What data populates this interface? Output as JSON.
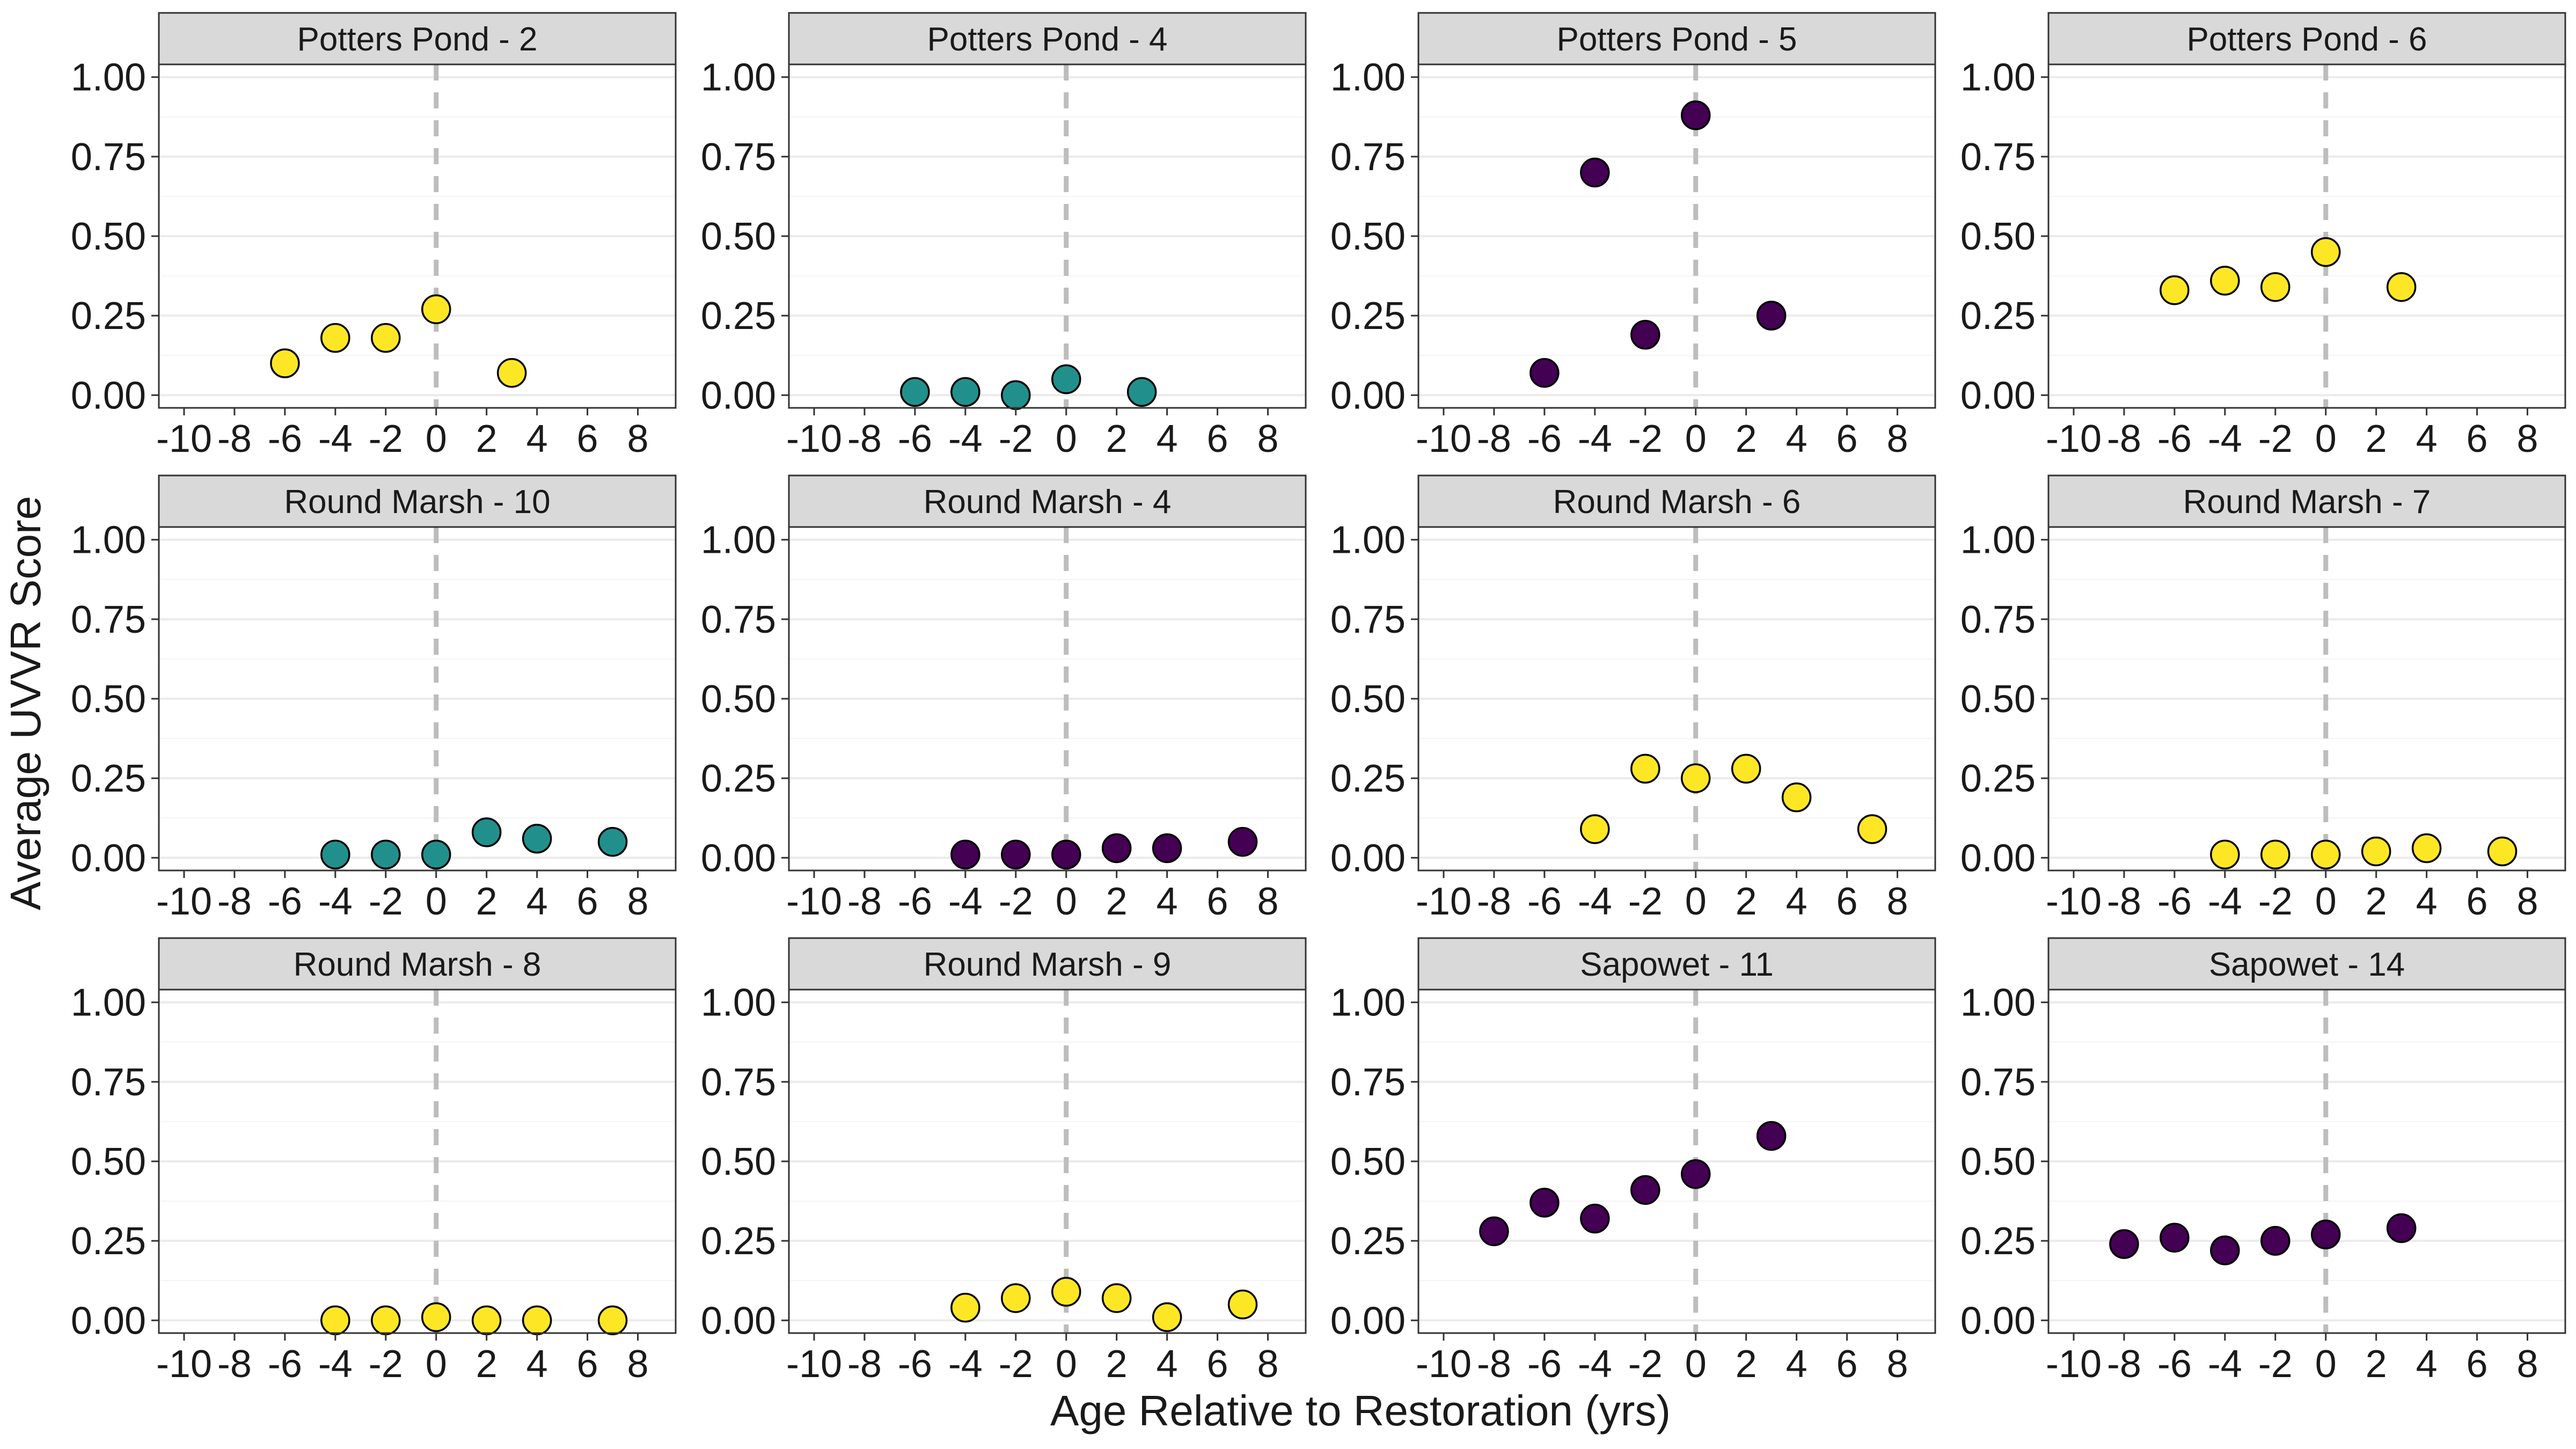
{
  "chart_data": {
    "type": "scatter",
    "layout": "facet-grid",
    "x_axis_label": "Age Relative to Restoration (yrs)",
    "y_axis_label": "Average UVVR Score",
    "xlim": [
      -11,
      9.5
    ],
    "ylim": [
      -0.04,
      1.04
    ],
    "x_ticks": [
      -10,
      -8,
      -6,
      -4,
      -2,
      0,
      2,
      4,
      6,
      8
    ],
    "x_tick_labels": [
      "-10",
      "-8",
      "-6",
      "-4",
      "-2",
      "0",
      "2",
      "4",
      "6",
      "8"
    ],
    "y_ticks": [
      0,
      0.25,
      0.5,
      0.75,
      1.0
    ],
    "y_tick_labels": [
      "0.00",
      "0.25",
      "0.50",
      "0.75",
      "1.00"
    ],
    "reference_line": {
      "x": 0,
      "style": "dashed",
      "color": "#bdbdbd"
    },
    "grid": true,
    "colors": {
      "yellow": "#fde725",
      "teal": "#21908c",
      "purple": "#440154",
      "strip_bg": "#d9d9d9",
      "grid": "#ebebeb"
    },
    "panels": [
      {
        "title": "Potters Pond - 2",
        "color": "#fde725",
        "x": [
          -6,
          -4,
          -2,
          0,
          3
        ],
        "y": [
          0.1,
          0.18,
          0.18,
          0.27,
          0.07
        ]
      },
      {
        "title": "Potters Pond - 4",
        "color": "#21908c",
        "x": [
          -6,
          -4,
          -2,
          0,
          3
        ],
        "y": [
          0.01,
          0.01,
          0.0,
          0.05,
          0.01
        ]
      },
      {
        "title": "Potters Pond - 5",
        "color": "#440154",
        "x": [
          -6,
          -4,
          -2,
          0,
          3
        ],
        "y": [
          0.07,
          0.7,
          0.19,
          0.88,
          0.25
        ]
      },
      {
        "title": "Potters Pond - 6",
        "color": "#fde725",
        "x": [
          -6,
          -4,
          -2,
          0,
          3
        ],
        "y": [
          0.33,
          0.36,
          0.34,
          0.45,
          0.34
        ]
      },
      {
        "title": "Round Marsh - 10",
        "color": "#21908c",
        "x": [
          -4,
          -2,
          0,
          2,
          4,
          7
        ],
        "y": [
          0.01,
          0.01,
          0.01,
          0.08,
          0.06,
          0.05
        ]
      },
      {
        "title": "Round Marsh - 4",
        "color": "#440154",
        "x": [
          -4,
          -2,
          0,
          2,
          4,
          7
        ],
        "y": [
          0.01,
          0.01,
          0.01,
          0.03,
          0.03,
          0.05
        ]
      },
      {
        "title": "Round Marsh - 6",
        "color": "#fde725",
        "x": [
          -4,
          -2,
          0,
          2,
          4,
          7
        ],
        "y": [
          0.09,
          0.28,
          0.25,
          0.28,
          0.19,
          0.09
        ]
      },
      {
        "title": "Round Marsh - 7",
        "color": "#fde725",
        "x": [
          -4,
          -2,
          0,
          2,
          4,
          7
        ],
        "y": [
          0.01,
          0.01,
          0.01,
          0.02,
          0.03,
          0.02
        ]
      },
      {
        "title": "Round Marsh - 8",
        "color": "#fde725",
        "x": [
          -4,
          -2,
          0,
          2,
          4,
          7
        ],
        "y": [
          0.0,
          0.0,
          0.01,
          0.0,
          0.0,
          0.0
        ]
      },
      {
        "title": "Round Marsh - 9",
        "color": "#fde725",
        "x": [
          -4,
          -2,
          0,
          2,
          4,
          7
        ],
        "y": [
          0.04,
          0.07,
          0.09,
          0.07,
          0.01,
          0.05
        ]
      },
      {
        "title": "Sapowet - 11",
        "color": "#440154",
        "x": [
          -8,
          -6,
          -4,
          -2,
          0,
          3
        ],
        "y": [
          0.28,
          0.37,
          0.32,
          0.41,
          0.46,
          0.58
        ]
      },
      {
        "title": "Sapowet - 14",
        "color": "#440154",
        "x": [
          -8,
          -6,
          -4,
          -2,
          0,
          3
        ],
        "y": [
          0.24,
          0.26,
          0.22,
          0.25,
          0.27,
          0.29
        ]
      }
    ]
  }
}
